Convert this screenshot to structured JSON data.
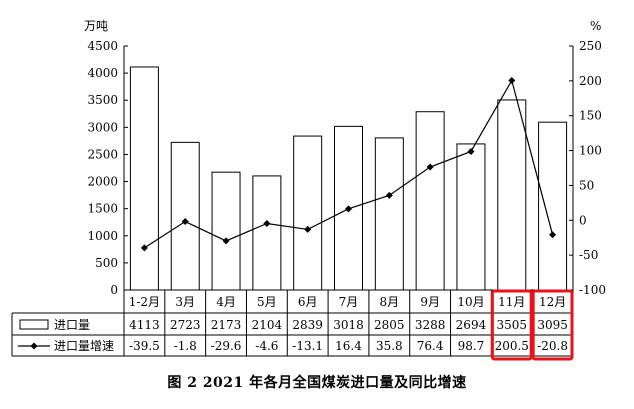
{
  "chart_data": {
    "type": "bar+line",
    "title": "图 2   2021 年各月全国煤炭进口量及同比增速",
    "y_left_unit": "万吨",
    "y_right_unit": "%",
    "y_left_ticks": [
      0,
      500,
      1000,
      1500,
      2000,
      2500,
      3000,
      3500,
      4000,
      4500
    ],
    "y_right_ticks": [
      -100,
      -50,
      0,
      50,
      100,
      150,
      200,
      250
    ],
    "ylim_left": [
      0,
      4500
    ],
    "ylim_right": [
      -100,
      250
    ],
    "categories": [
      "1-2月",
      "3月",
      "4月",
      "5月",
      "6月",
      "7月",
      "8月",
      "9月",
      "10月",
      "11月",
      "12月"
    ],
    "series": [
      {
        "name": "进口量",
        "type": "bar",
        "axis": "left",
        "values": [
          4113,
          2723,
          2173,
          2104,
          2839,
          3018,
          2805,
          3288,
          2694,
          3505,
          3095
        ],
        "labels": [
          "4113",
          "2723",
          "2173",
          "2104",
          "2839",
          "3018",
          "2805",
          "3288",
          "2694",
          "3505",
          "3095"
        ]
      },
      {
        "name": "进口量增速",
        "type": "line",
        "axis": "right",
        "values": [
          -39.5,
          -1.8,
          -29.6,
          -4.6,
          -13.1,
          16.4,
          35.8,
          76.4,
          98.7,
          200.5,
          -20.8
        ],
        "labels": [
          "-39.5",
          "-1.8",
          "-29.6",
          "-4.6",
          "-13.1",
          "16.4",
          "35.8",
          "76.4",
          "98.7",
          "200.5",
          "-20.8"
        ]
      }
    ],
    "highlight_categories": [
      "11月",
      "12月"
    ],
    "colors": {
      "bar_fill": "#ffffff",
      "bar_stroke": "#000000",
      "line": "#000000",
      "highlight": "#e8131a"
    }
  }
}
